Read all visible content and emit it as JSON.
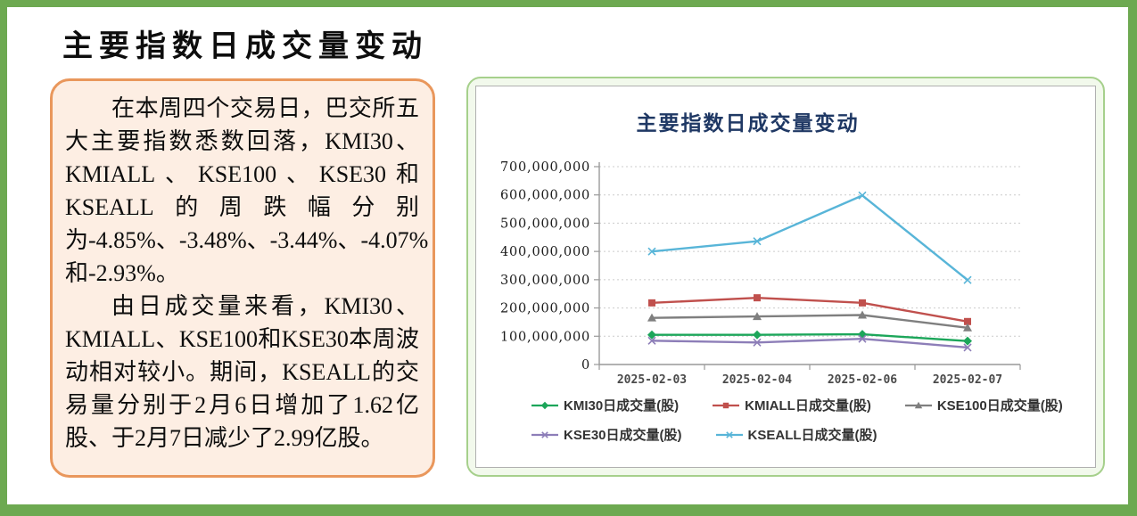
{
  "page": {
    "title": "主要指数日成交量变动"
  },
  "summary_box": {
    "paragraphs": [
      "在本周四个交易日，巴交所五大主要指数悉数回落，KMI30、KMIALL、KSE100、KSE30和KSEALL的周跌幅分别为-4.85%、-3.48%、-3.44%、-4.07%和-2.93%。",
      "由日成交量来看，KMI30、KMIALL、KSE100和KSE30本周波动相对较小。期间，KSEALL的交易量分别于2月6日增加了1.62亿股、于2月7日减少了2.99亿股。"
    ]
  },
  "colors": {
    "frame_green": "#6da951",
    "panel_border_green": "#a6d08c",
    "panel_bg_green": "#f2f9ec",
    "box_border_orange": "#e9975c",
    "box_bg_peach": "#fdeee3",
    "chart_title_navy": "#1f3864",
    "gridline": "#cccccc",
    "axis": "#999999"
  },
  "chart_data": {
    "type": "line",
    "title": "主要指数日成交量变动",
    "categories": [
      "2025-02-03",
      "2025-02-04",
      "2025-02-06",
      "2025-02-07"
    ],
    "series": [
      {
        "name": "KMI30日成交量(股)",
        "color": "#1ca65a",
        "marker": "diamond",
        "values": [
          105000000,
          105000000,
          107000000,
          83000000
        ]
      },
      {
        "name": "KMIALL日成交量(股)",
        "color": "#c0504d",
        "marker": "square",
        "values": [
          218000000,
          236000000,
          218000000,
          152000000
        ]
      },
      {
        "name": "KSE100日成交量(股)",
        "color": "#7f7f7f",
        "marker": "triangle",
        "values": [
          165000000,
          170000000,
          175000000,
          130000000
        ]
      },
      {
        "name": "KSE30日成交量(股)",
        "color": "#8d7eb8",
        "marker": "x",
        "values": [
          84000000,
          78000000,
          91000000,
          60000000
        ]
      },
      {
        "name": "KSEALL日成交量(股)",
        "color": "#58b5d8",
        "marker": "x",
        "values": [
          400000000,
          436000000,
          598000000,
          299000000
        ]
      }
    ],
    "y_tick_labels": [
      "0",
      "100,000,000",
      "200,000,000",
      "300,000,000",
      "400,000,000",
      "500,000,000",
      "600,000,000",
      "700,000,000"
    ],
    "ylim": [
      0,
      700000000
    ],
    "grid": "horizontal-dotted",
    "legend_position": "bottom",
    "legend_rows": [
      [
        0,
        1,
        2
      ],
      [
        3,
        4
      ]
    ]
  }
}
